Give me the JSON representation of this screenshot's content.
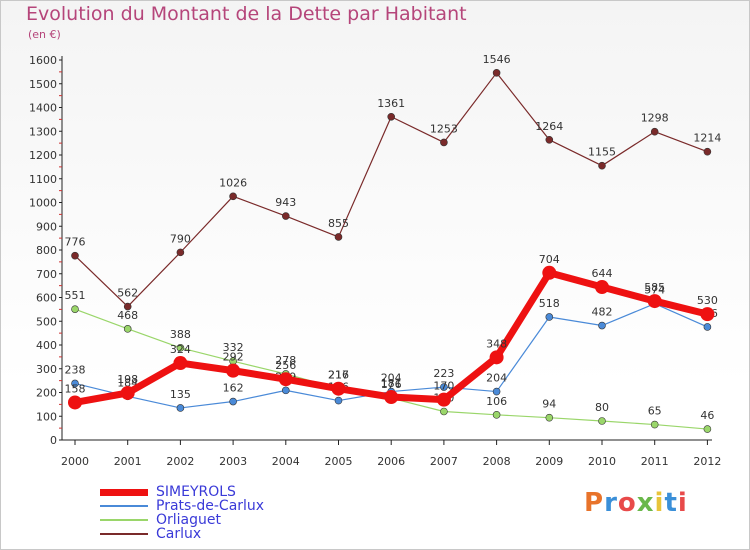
{
  "header": {
    "title": "Evolution du Montant de la Dette par Habitant",
    "subtitle": "(en €)"
  },
  "brand": {
    "text": "Proxiti",
    "colors": [
      "#e8732a",
      "#3a8fd8",
      "#e84a4a",
      "#6ab84a",
      "#e8c43a",
      "#3a8fd8",
      "#e84a4a"
    ]
  },
  "chart_data": {
    "type": "line",
    "title": "Evolution du Montant de la Dette par Habitant",
    "ylabel": "(en €)",
    "xlabel": "",
    "ylim": [
      0,
      1600
    ],
    "yticks": [
      0,
      100,
      200,
      300,
      400,
      500,
      600,
      700,
      800,
      900,
      1000,
      1100,
      1200,
      1300,
      1400,
      1500,
      1600
    ],
    "x": [
      "2000",
      "2001",
      "2002",
      "2003",
      "2004",
      "2005",
      "2006",
      "2007",
      "2008",
      "2009",
      "2010",
      "2011",
      "2012"
    ],
    "grid": false,
    "legend_position": "bottom-left",
    "series": [
      {
        "name": "Carlux",
        "color": "#7a2a2a",
        "width": 1.2,
        "marker": 3.5,
        "values": [
          776,
          562,
          790,
          1026,
          943,
          855,
          1361,
          1253,
          1546,
          1264,
          1155,
          1298,
          1214
        ]
      },
      {
        "name": "Orliaguet",
        "color": "#9ad66a",
        "width": 1.2,
        "marker": 3.5,
        "values": [
          551,
          468,
          388,
          332,
          278,
          217,
          176,
          120,
          106,
          94,
          80,
          65,
          46
        ]
      },
      {
        "name": "Prats-de-Carlux",
        "color": "#4a8ad8",
        "width": 1.2,
        "marker": 3.5,
        "values": [
          238,
          184,
          135,
          162,
          209,
          166,
          204,
          223,
          204,
          518,
          482,
          574,
          476
        ]
      },
      {
        "name": "SIMEYROLS",
        "color": "#ee1111",
        "width": 7,
        "marker": 7,
        "values": [
          158,
          198,
          324,
          292,
          256,
          216,
          181,
          170,
          348,
          704,
          644,
          585,
          530
        ]
      }
    ]
  },
  "legend": [
    {
      "label": "SIMEYROLS",
      "color": "#ee1111",
      "thickness": 7
    },
    {
      "label": "Prats-de-Carlux",
      "color": "#4a8ad8",
      "thickness": 2
    },
    {
      "label": "Orliaguet",
      "color": "#9ad66a",
      "thickness": 2
    },
    {
      "label": "Carlux",
      "color": "#7a2a2a",
      "thickness": 2
    }
  ]
}
